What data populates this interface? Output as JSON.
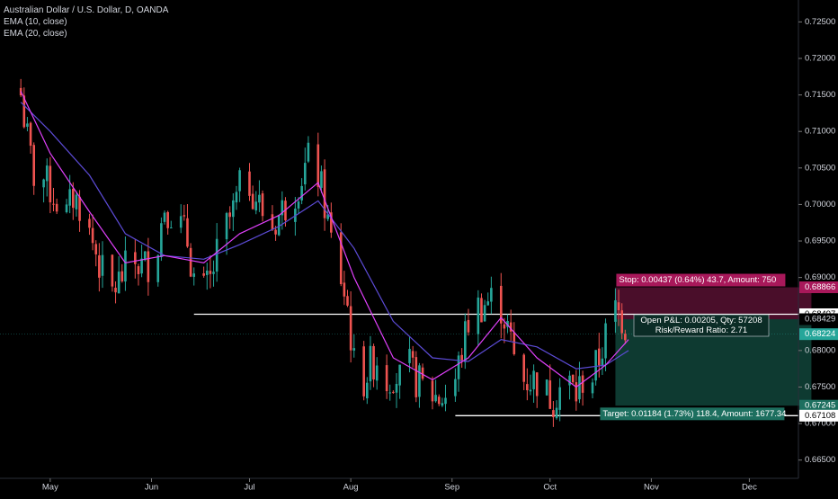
{
  "header": {
    "title": "Australian Dollar / U.S. Dollar, D, OANDA",
    "indicators": [
      "EMA (10, close)",
      "EMA (20, close)"
    ]
  },
  "colors": {
    "background": "#000000",
    "up": "#26a69a",
    "down": "#ef5350",
    "ema10": "#e040fb",
    "ema20": "#5c4bd6",
    "stop_zone": "#4a0e2a",
    "target_zone": "#0e3a31",
    "stop_badge": "#a8185a",
    "target_badge": "#1d6f5f",
    "price_badge": "#26a69a",
    "axis_text": "#d1d4dc"
  },
  "chart_data": {
    "type": "candlestick",
    "title": "Australian Dollar / U.S. Dollar, D, OANDA",
    "ylim": [
      0.6625,
      0.728
    ],
    "y_ticks": [
      "0.72500",
      "0.72000",
      "0.71500",
      "0.71000",
      "0.70500",
      "0.70000",
      "0.69500",
      "0.69000",
      "0.68500",
      "0.68000",
      "0.67500",
      "0.67000",
      "0.66500"
    ],
    "x_ticks": [
      "May",
      "Jun",
      "Jul",
      "Aug",
      "Sep",
      "Oct",
      "Nov",
      "Dec"
    ],
    "grid": false,
    "close_points": [
      [
        "2019-04-22",
        0.715
      ],
      [
        "2019-04-24",
        0.709
      ],
      [
        "2019-04-26",
        0.704
      ],
      [
        "2019-04-29",
        0.7035
      ],
      [
        "2019-05-01",
        0.702
      ],
      [
        "2019-05-03",
        0.7005
      ],
      [
        "2019-05-06",
        0.6985
      ],
      [
        "2019-05-08",
        0.701
      ],
      [
        "2019-05-10",
        0.7
      ],
      [
        "2019-05-13",
        0.696
      ],
      [
        "2019-05-15",
        0.6935
      ],
      [
        "2019-05-17",
        0.6905
      ],
      [
        "2019-05-20",
        0.688
      ],
      [
        "2019-05-22",
        0.6895
      ],
      [
        "2019-05-24",
        0.691
      ],
      [
        "2019-05-27",
        0.692
      ],
      [
        "2019-05-29",
        0.6915
      ],
      [
        "2019-05-31",
        0.692
      ],
      [
        "2019-06-03",
        0.695
      ],
      [
        "2019-06-05",
        0.7
      ],
      [
        "2019-06-07",
        0.699
      ],
      [
        "2019-06-10",
        0.697
      ],
      [
        "2019-06-12",
        0.695
      ],
      [
        "2019-06-14",
        0.69
      ],
      [
        "2019-06-17",
        0.688
      ],
      [
        "2019-06-19",
        0.6895
      ],
      [
        "2019-06-21",
        0.693
      ],
      [
        "2019-06-24",
        0.697
      ],
      [
        "2019-06-26",
        0.699
      ],
      [
        "2019-06-28",
        0.702
      ],
      [
        "2019-07-01",
        0.703
      ],
      [
        "2019-07-03",
        0.701
      ],
      [
        "2019-07-05",
        0.699
      ],
      [
        "2019-07-08",
        0.697
      ],
      [
        "2019-07-10",
        0.6985
      ],
      [
        "2019-07-12",
        0.7
      ],
      [
        "2019-07-15",
        0.702
      ],
      [
        "2019-07-17",
        0.704
      ],
      [
        "2019-07-19",
        0.706
      ],
      [
        "2019-07-22",
        0.704
      ],
      [
        "2019-07-24",
        0.7
      ],
      [
        "2019-07-26",
        0.695
      ],
      [
        "2019-07-29",
        0.69
      ],
      [
        "2019-07-31",
        0.686
      ],
      [
        "2019-08-02",
        0.678
      ],
      [
        "2019-08-05",
        0.676
      ],
      [
        "2019-08-07",
        0.678
      ],
      [
        "2019-08-09",
        0.679
      ],
      [
        "2019-08-12",
        0.676
      ],
      [
        "2019-08-14",
        0.677
      ],
      [
        "2019-08-16",
        0.676
      ],
      [
        "2019-08-19",
        0.6775
      ],
      [
        "2019-08-21",
        0.676
      ],
      [
        "2019-08-23",
        0.675
      ],
      [
        "2019-08-26",
        0.674
      ],
      [
        "2019-08-28",
        0.6735
      ],
      [
        "2019-08-30",
        0.674
      ],
      [
        "2019-09-02",
        0.676
      ],
      [
        "2019-09-04",
        0.68
      ],
      [
        "2019-09-06",
        0.684
      ],
      [
        "2019-09-09",
        0.686
      ],
      [
        "2019-09-11",
        0.6865
      ],
      [
        "2019-09-13",
        0.687
      ],
      [
        "2019-09-16",
        0.686
      ],
      [
        "2019-09-18",
        0.683
      ],
      [
        "2019-09-20",
        0.679
      ],
      [
        "2019-09-23",
        0.676
      ],
      [
        "2019-09-25",
        0.676
      ],
      [
        "2019-09-27",
        0.676
      ],
      [
        "2019-09-30",
        0.674
      ],
      [
        "2019-10-02",
        0.6735
      ],
      [
        "2019-10-04",
        0.675
      ],
      [
        "2019-10-07",
        0.6755
      ],
      [
        "2019-10-09",
        0.674
      ],
      [
        "2019-10-11",
        0.676
      ],
      [
        "2019-10-14",
        0.6765
      ],
      [
        "2019-10-16",
        0.679
      ],
      [
        "2019-10-18",
        0.682
      ],
      [
        "2019-10-21",
        0.6855
      ],
      [
        "2019-10-23",
        0.6845
      ],
      [
        "2019-10-25",
        0.6822
      ]
    ],
    "ema10_points": [
      [
        "2019-04-22",
        0.7155
      ],
      [
        "2019-05-01",
        0.707
      ],
      [
        "2019-05-13",
        0.699
      ],
      [
        "2019-05-24",
        0.692
      ],
      [
        "2019-06-05",
        0.693
      ],
      [
        "2019-06-17",
        0.692
      ],
      [
        "2019-06-28",
        0.696
      ],
      [
        "2019-07-10",
        0.6985
      ],
      [
        "2019-07-22",
        0.703
      ],
      [
        "2019-08-02",
        0.69
      ],
      [
        "2019-08-14",
        0.679
      ],
      [
        "2019-08-26",
        0.676
      ],
      [
        "2019-09-06",
        0.679
      ],
      [
        "2019-09-16",
        0.6845
      ],
      [
        "2019-09-27",
        0.679
      ],
      [
        "2019-10-09",
        0.675
      ],
      [
        "2019-10-18",
        0.678
      ],
      [
        "2019-10-25",
        0.6815
      ]
    ],
    "ema20_points": [
      [
        "2019-04-22",
        0.714
      ],
      [
        "2019-05-01",
        0.71
      ],
      [
        "2019-05-13",
        0.704
      ],
      [
        "2019-05-24",
        0.696
      ],
      [
        "2019-06-05",
        0.693
      ],
      [
        "2019-06-17",
        0.6925
      ],
      [
        "2019-06-28",
        0.6945
      ],
      [
        "2019-07-10",
        0.697
      ],
      [
        "2019-07-22",
        0.7005
      ],
      [
        "2019-08-02",
        0.694
      ],
      [
        "2019-08-14",
        0.684
      ],
      [
        "2019-08-26",
        0.679
      ],
      [
        "2019-09-06",
        0.6785
      ],
      [
        "2019-09-16",
        0.6815
      ],
      [
        "2019-09-27",
        0.6805
      ],
      [
        "2019-10-09",
        0.6775
      ],
      [
        "2019-10-18",
        0.678
      ],
      [
        "2019-10-25",
        0.68
      ]
    ],
    "levels": {
      "resistance": 0.68497,
      "support": 0.67108,
      "current_price": 0.68224,
      "stop": 0.68866,
      "entry_ref": 0.68429,
      "target": 0.67245
    },
    "axis_badges": [
      {
        "label": "0.68866",
        "value": 0.68866,
        "kind": "stop"
      },
      {
        "label": "0.68497",
        "value": 0.68497,
        "kind": "line"
      },
      {
        "label": "0.68429",
        "value": 0.68429,
        "kind": "plain"
      },
      {
        "label": "0.68224",
        "value": 0.68224,
        "kind": "price"
      },
      {
        "label": "0.67245",
        "value": 0.67245,
        "kind": "target"
      },
      {
        "label": "0.67108",
        "value": 0.67108,
        "kind": "line"
      }
    ],
    "position": {
      "start_date": "2019-10-21",
      "end_date": "2019-12-20",
      "stop_label": "Stop: 0.00437 (0.64%) 43.7, Amount: 750",
      "target_label": "Target: 0.01184 (1.73%) 118.4, Amount: 1677.34",
      "pnl_label": "Open P&L: 0.00205, Qty: 57208",
      "ratio_label": "Risk/Reward Ratio: 2.71"
    }
  }
}
